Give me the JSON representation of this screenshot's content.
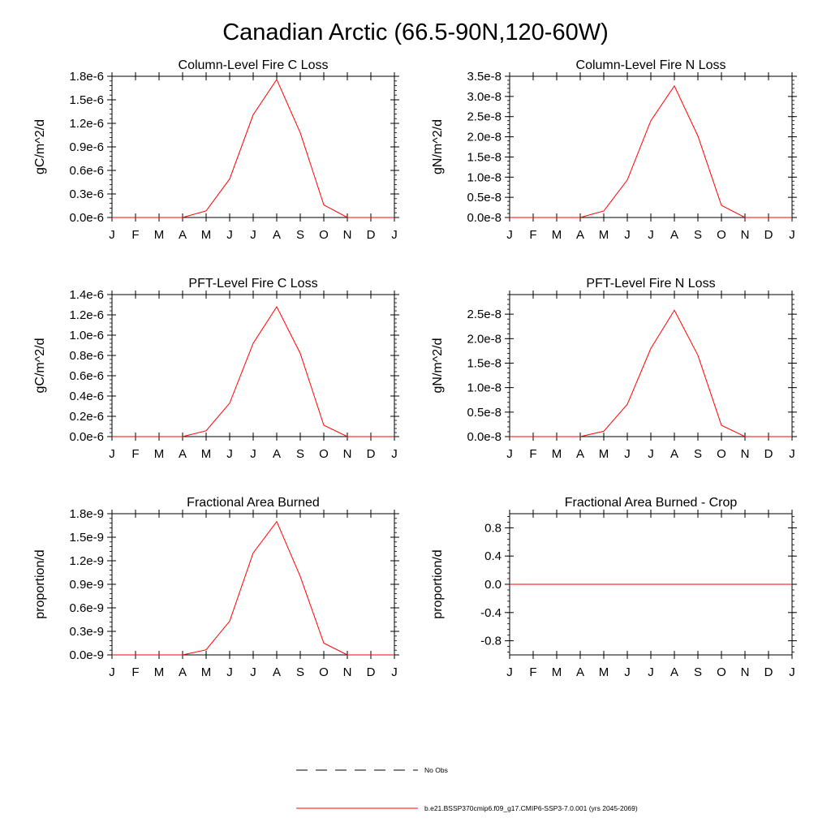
{
  "title": "Canadian Arctic (66.5-90N,120-60W)",
  "legend": [
    {
      "label": "No Obs",
      "style": "dashed",
      "color": "#000000"
    },
    {
      "label": "b.e21.BSSP370cmip6.f09_g17.CMIP6-SSP3-7.0.001 (yrs 2045-2069)",
      "style": "solid",
      "color": "#ff0000"
    }
  ],
  "series_color": "#ff0000",
  "chart_data": [
    {
      "type": "line",
      "title": "Column-Level Fire C Loss",
      "ylabel": "gC/m^2/d",
      "categories": [
        "J",
        "F",
        "M",
        "A",
        "M",
        "J",
        "J",
        "A",
        "S",
        "O",
        "N",
        "D",
        "J"
      ],
      "ylim": [
        0,
        1.8e-06
      ],
      "yticks": [
        0,
        3e-07,
        6e-07,
        9e-07,
        1.2e-06,
        1.5e-06,
        1.8e-06
      ],
      "ytick_labels": [
        "0.0e-6",
        "0.3e-6",
        "0.6e-6",
        "0.9e-6",
        "1.2e-6",
        "1.5e-6",
        "1.8e-6"
      ],
      "series": [
        {
          "values": [
            0,
            0,
            0,
            0,
            8.5e-08,
            4.9e-07,
            1.31e-06,
            1.76e-06,
            1.08e-06,
            1.6e-07,
            0,
            0,
            0
          ]
        }
      ]
    },
    {
      "type": "line",
      "title": "Column-Level Fire N Loss",
      "ylabel": "gN/m^2/d",
      "categories": [
        "J",
        "F",
        "M",
        "A",
        "M",
        "J",
        "J",
        "A",
        "S",
        "O",
        "N",
        "D",
        "J"
      ],
      "ylim": [
        0,
        3.5e-08
      ],
      "yticks": [
        0,
        5e-09,
        1e-08,
        1.5e-08,
        2e-08,
        2.5e-08,
        3e-08,
        3.5e-08
      ],
      "ytick_labels": [
        "0.0e-8",
        "0.5e-8",
        "1.0e-8",
        "1.5e-8",
        "2.0e-8",
        "2.5e-8",
        "3.0e-8",
        "3.5e-8"
      ],
      "series": [
        {
          "values": [
            0,
            0,
            0,
            0,
            1.6e-09,
            9.3e-09,
            2.4e-08,
            3.26e-08,
            2.02e-08,
            3e-09,
            0,
            0,
            0
          ]
        }
      ]
    },
    {
      "type": "line",
      "title": "PFT-Level Fire C Loss",
      "ylabel": "gC/m^2/d",
      "categories": [
        "J",
        "F",
        "M",
        "A",
        "M",
        "J",
        "J",
        "A",
        "S",
        "O",
        "N",
        "D",
        "J"
      ],
      "ylim": [
        0,
        1.4e-06
      ],
      "yticks": [
        0,
        2e-07,
        4e-07,
        6e-07,
        8e-07,
        1e-06,
        1.2e-06,
        1.4e-06
      ],
      "ytick_labels": [
        "0.0e-6",
        "0.2e-6",
        "0.4e-6",
        "0.6e-6",
        "0.8e-6",
        "1.0e-6",
        "1.2e-6",
        "1.4e-6"
      ],
      "series": [
        {
          "values": [
            0,
            0,
            0,
            0,
            5.8e-08,
            3.3e-07,
            9.2e-07,
            1.28e-06,
            8.2e-07,
            1.12e-07,
            0,
            0,
            0
          ]
        }
      ]
    },
    {
      "type": "line",
      "title": "PFT-Level Fire N Loss",
      "ylabel": "gN/m^2/d",
      "categories": [
        "J",
        "F",
        "M",
        "A",
        "M",
        "J",
        "J",
        "A",
        "S",
        "O",
        "N",
        "D",
        "J"
      ],
      "ylim": [
        0,
        2.9e-08
      ],
      "yticks": [
        0,
        5e-09,
        1e-08,
        1.5e-08,
        2e-08,
        2.5e-08
      ],
      "ytick_labels": [
        "0.0e-8",
        "0.5e-8",
        "1.0e-8",
        "1.5e-8",
        "2.0e-8",
        "2.5e-8"
      ],
      "series": [
        {
          "values": [
            0,
            0,
            0,
            0,
            1.1e-09,
            6.6e-09,
            1.8e-08,
            2.58e-08,
            1.66e-08,
            2.3e-09,
            0,
            0,
            0
          ]
        }
      ]
    },
    {
      "type": "line",
      "title": "Fractional Area Burned",
      "ylabel": "proportion/d",
      "categories": [
        "J",
        "F",
        "M",
        "A",
        "M",
        "J",
        "J",
        "A",
        "S",
        "O",
        "N",
        "D",
        "J"
      ],
      "ylim": [
        0,
        1.8e-09
      ],
      "yticks": [
        0,
        3e-10,
        6e-10,
        9e-10,
        1.2e-09,
        1.5e-09,
        1.8e-09
      ],
      "ytick_labels": [
        "0.0e-9",
        "0.3e-9",
        "0.6e-9",
        "0.9e-9",
        "1.2e-9",
        "1.5e-9",
        "1.8e-9"
      ],
      "series": [
        {
          "values": [
            0,
            0,
            0,
            0,
            6.5e-11,
            4.3e-10,
            1.3e-09,
            1.7e-09,
            1e-09,
            1.5e-10,
            0,
            0,
            0
          ]
        }
      ]
    },
    {
      "type": "line",
      "title": "Fractional Area Burned - Crop",
      "ylabel": "proportion/d",
      "categories": [
        "J",
        "F",
        "M",
        "A",
        "M",
        "J",
        "J",
        "A",
        "S",
        "O",
        "N",
        "D",
        "J"
      ],
      "ylim": [
        -1.0,
        1.0
      ],
      "yticks": [
        -0.8,
        -0.4,
        0,
        0.4,
        0.8
      ],
      "ytick_labels": [
        "-0.8",
        "-0.4",
        "0.0",
        "0.4",
        "0.8"
      ],
      "series": [
        {
          "values": [
            0,
            0,
            0,
            0,
            0,
            0,
            0,
            0,
            0,
            0,
            0,
            0,
            0
          ]
        }
      ]
    }
  ]
}
